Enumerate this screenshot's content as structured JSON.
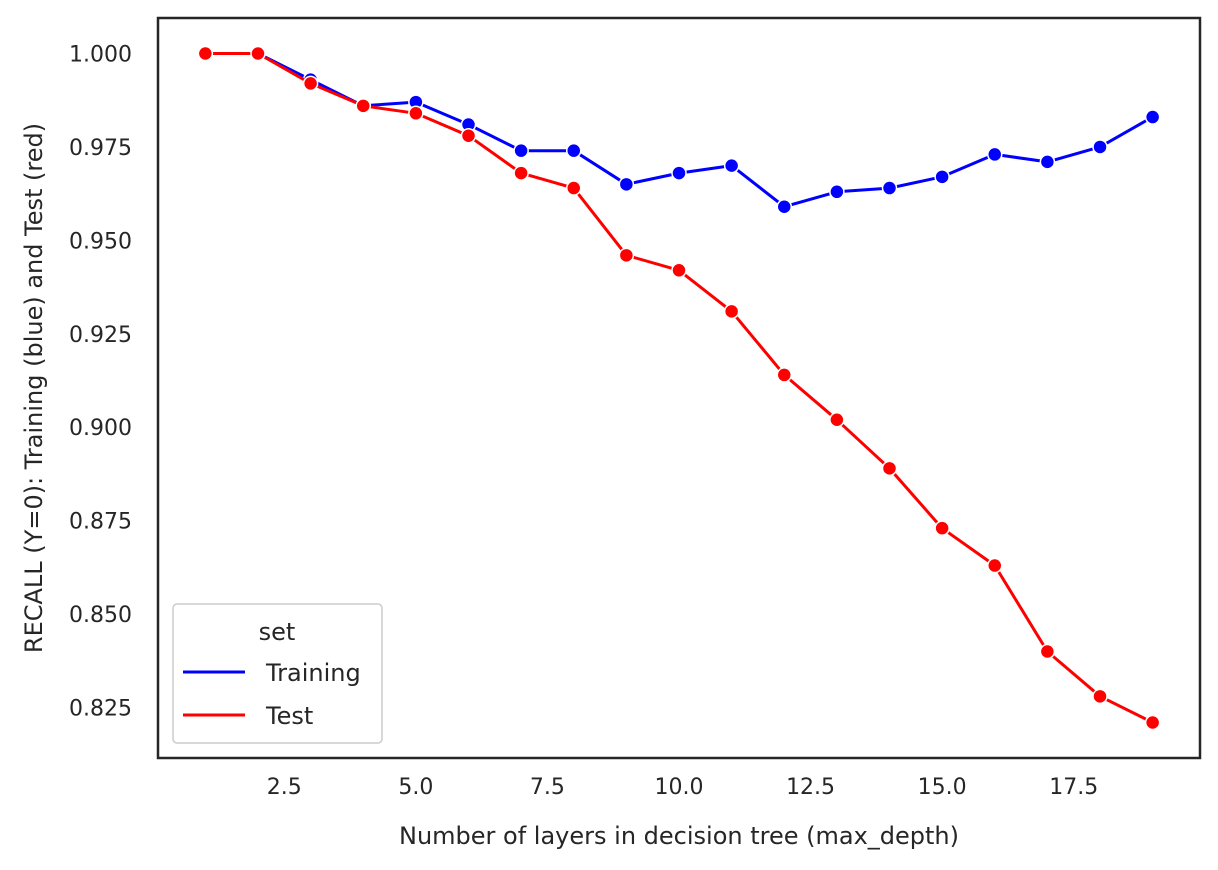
{
  "chart_data": {
    "type": "line",
    "title": "",
    "xlabel": "Number of layers in decision tree (max_depth)",
    "ylabel": "RECALL (Y=0): Training (blue) and Test (red)",
    "xlim": [
      0.1,
      19.9
    ],
    "ylim": [
      0.8115,
      1.0095
    ],
    "x_ticks": [
      2.5,
      5.0,
      7.5,
      10.0,
      12.5,
      15.0,
      17.5
    ],
    "x_tick_labels": [
      "2.5",
      "5.0",
      "7.5",
      "10.0",
      "12.5",
      "15.0",
      "17.5"
    ],
    "y_ticks": [
      0.825,
      0.85,
      0.875,
      0.9,
      0.925,
      0.95,
      0.975,
      1.0
    ],
    "y_tick_labels": [
      "0.825",
      "0.850",
      "0.875",
      "0.900",
      "0.925",
      "0.950",
      "0.975",
      "1.000"
    ],
    "grid": false,
    "legend": {
      "title": "set",
      "placement": "lower-left"
    },
    "x": [
      1,
      2,
      3,
      4,
      5,
      6,
      7,
      8,
      9,
      10,
      11,
      12,
      13,
      14,
      15,
      16,
      17,
      18,
      19
    ],
    "series": [
      {
        "name": "Training",
        "color": "#0000ff",
        "values": [
          1.0,
          1.0,
          0.993,
          0.986,
          0.987,
          0.981,
          0.974,
          0.974,
          0.965,
          0.968,
          0.97,
          0.959,
          0.963,
          0.964,
          0.967,
          0.973,
          0.971,
          0.975,
          0.983
        ]
      },
      {
        "name": "Test",
        "color": "#ff0000",
        "values": [
          1.0,
          1.0,
          0.992,
          0.986,
          0.984,
          0.978,
          0.968,
          0.964,
          0.946,
          0.942,
          0.931,
          0.914,
          0.902,
          0.889,
          0.873,
          0.863,
          0.84,
          0.828,
          0.821
        ]
      }
    ]
  }
}
